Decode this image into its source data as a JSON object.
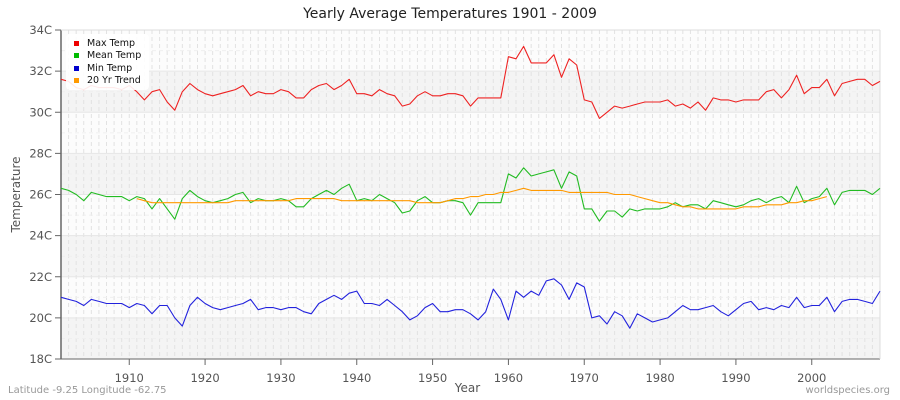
{
  "title": "Yearly Average Temperatures 1901 - 2009",
  "footer": {
    "left": "Latitude -9.25 Longitude -62.75",
    "right": "worldspecies.org"
  },
  "legend": [
    {
      "label": "Max Temp",
      "color": "#ee0000"
    },
    {
      "label": "Mean Temp",
      "color": "#00bb00"
    },
    {
      "label": "Min Temp",
      "color": "#0000cc"
    },
    {
      "label": "20 Yr Trend",
      "color": "#ff9900"
    }
  ],
  "chart_data": {
    "type": "line",
    "title": "Yearly Average Temperatures 1901 - 2009",
    "xlabel": "Year",
    "ylabel": "Temperature",
    "xlim": [
      1901,
      2009
    ],
    "ylim": [
      18,
      34
    ],
    "yticks": [
      "18C",
      "20C",
      "22C",
      "24C",
      "26C",
      "28C",
      "30C",
      "32C",
      "34C"
    ],
    "xticks": [
      1910,
      1920,
      1930,
      1940,
      1950,
      1960,
      1970,
      1980,
      1990,
      2000
    ],
    "grid": true,
    "legend_position": "top-left",
    "x_start": 1901,
    "series": [
      {
        "name": "Max Temp",
        "color": "#ee2222",
        "values": [
          31.6,
          31.5,
          31.2,
          31.1,
          31.3,
          31.2,
          31.2,
          31.2,
          31.1,
          31.3,
          31.0,
          30.6,
          31.0,
          31.1,
          30.5,
          30.1,
          31.0,
          31.4,
          31.1,
          30.9,
          30.8,
          30.9,
          31.0,
          31.1,
          31.3,
          30.8,
          31.0,
          30.9,
          30.9,
          31.1,
          31.0,
          30.7,
          30.7,
          31.1,
          31.3,
          31.4,
          31.1,
          31.3,
          31.6,
          30.9,
          30.9,
          30.8,
          31.1,
          30.9,
          30.8,
          30.3,
          30.4,
          30.8,
          31.0,
          30.8,
          30.8,
          30.9,
          30.9,
          30.8,
          30.3,
          30.7,
          30.7,
          30.7,
          30.7,
          32.7,
          32.6,
          33.2,
          32.4,
          32.4,
          32.4,
          32.8,
          31.7,
          32.6,
          32.3,
          30.6,
          30.5,
          29.7,
          30.0,
          30.3,
          30.2,
          30.3,
          30.4,
          30.5,
          30.5,
          30.5,
          30.6,
          30.3,
          30.4,
          30.2,
          30.5,
          30.1,
          30.7,
          30.6,
          30.6,
          30.5,
          30.6,
          30.6,
          30.6,
          31.0,
          31.1,
          30.7,
          31.1,
          31.8,
          30.9,
          31.2,
          31.2,
          31.6,
          30.8,
          31.4,
          31.5,
          31.6,
          31.6,
          31.3,
          31.5
        ]
      },
      {
        "name": "Mean Temp",
        "color": "#22bb22",
        "values": [
          26.3,
          26.2,
          26.0,
          25.7,
          26.1,
          26.0,
          25.9,
          25.9,
          25.9,
          25.7,
          25.9,
          25.8,
          25.3,
          25.8,
          25.3,
          24.8,
          25.8,
          26.2,
          25.9,
          25.7,
          25.6,
          25.7,
          25.8,
          26.0,
          26.1,
          25.6,
          25.8,
          25.7,
          25.7,
          25.8,
          25.7,
          25.4,
          25.4,
          25.8,
          26.0,
          26.2,
          26.0,
          26.3,
          26.5,
          25.7,
          25.8,
          25.7,
          26.0,
          25.8,
          25.6,
          25.1,
          25.2,
          25.7,
          25.9,
          25.6,
          25.6,
          25.7,
          25.7,
          25.6,
          25.0,
          25.6,
          25.6,
          25.6,
          25.6,
          27.0,
          26.8,
          27.3,
          26.9,
          27.0,
          27.1,
          27.2,
          26.3,
          27.1,
          26.9,
          25.3,
          25.3,
          24.7,
          25.2,
          25.2,
          24.9,
          25.3,
          25.2,
          25.3,
          25.3,
          25.3,
          25.4,
          25.6,
          25.4,
          25.5,
          25.5,
          25.3,
          25.7,
          25.6,
          25.5,
          25.4,
          25.5,
          25.7,
          25.8,
          25.6,
          25.8,
          25.9,
          25.6,
          26.4,
          25.6,
          25.8,
          25.9,
          26.3,
          25.5,
          26.1,
          26.2,
          26.2,
          26.2,
          26.0,
          26.3
        ]
      },
      {
        "name": "Min Temp",
        "color": "#2222dd",
        "values": [
          21.0,
          20.9,
          20.8,
          20.6,
          20.9,
          20.8,
          20.7,
          20.7,
          20.7,
          20.5,
          20.7,
          20.6,
          20.2,
          20.6,
          20.6,
          20.0,
          19.6,
          20.6,
          21.0,
          20.7,
          20.5,
          20.4,
          20.5,
          20.6,
          20.7,
          20.9,
          20.4,
          20.5,
          20.5,
          20.4,
          20.5,
          20.5,
          20.3,
          20.2,
          20.7,
          20.9,
          21.1,
          20.9,
          21.2,
          21.3,
          20.7,
          20.7,
          20.6,
          20.9,
          20.6,
          20.3,
          19.9,
          20.1,
          20.5,
          20.7,
          20.3,
          20.3,
          20.4,
          20.4,
          20.2,
          19.9,
          20.3,
          21.4,
          20.9,
          19.9,
          21.3,
          21.0,
          21.3,
          21.1,
          21.8,
          21.9,
          21.6,
          20.9,
          21.7,
          21.5,
          20.0,
          20.1,
          19.7,
          20.3,
          20.1,
          19.5,
          20.2,
          20.0,
          19.8,
          19.9,
          20.0,
          20.3,
          20.6,
          20.4,
          20.4,
          20.5,
          20.6,
          20.3,
          20.1,
          20.4,
          20.7,
          20.8,
          20.4,
          20.5,
          20.4,
          20.6,
          20.5,
          21.0,
          20.5,
          20.6,
          20.6,
          21.0,
          20.3,
          20.8,
          20.9,
          20.9,
          20.8,
          20.7,
          21.3
        ]
      },
      {
        "name": "20 Yr Trend",
        "color": "#ff9900",
        "start_year": 1911,
        "values": [
          25.8,
          25.7,
          25.6,
          25.6,
          25.6,
          25.6,
          25.6,
          25.6,
          25.6,
          25.6,
          25.6,
          25.6,
          25.6,
          25.7,
          25.7,
          25.7,
          25.7,
          25.7,
          25.7,
          25.7,
          25.7,
          25.8,
          25.8,
          25.8,
          25.8,
          25.8,
          25.8,
          25.7,
          25.7,
          25.7,
          25.7,
          25.7,
          25.7,
          25.7,
          25.7,
          25.7,
          25.7,
          25.6,
          25.6,
          25.6,
          25.6,
          25.7,
          25.8,
          25.8,
          25.9,
          25.9,
          26.0,
          26.0,
          26.1,
          26.1,
          26.2,
          26.3,
          26.2,
          26.2,
          26.2,
          26.2,
          26.2,
          26.1,
          26.1,
          26.1,
          26.1,
          26.1,
          26.1,
          26.0,
          26.0,
          26.0,
          25.9,
          25.8,
          25.7,
          25.6,
          25.6,
          25.5,
          25.4,
          25.4,
          25.3,
          25.3,
          25.3,
          25.3,
          25.3,
          25.3,
          25.4,
          25.4,
          25.4,
          25.5,
          25.5,
          25.5,
          25.6,
          25.6,
          25.7,
          25.7,
          25.8,
          25.9
        ]
      }
    ]
  }
}
